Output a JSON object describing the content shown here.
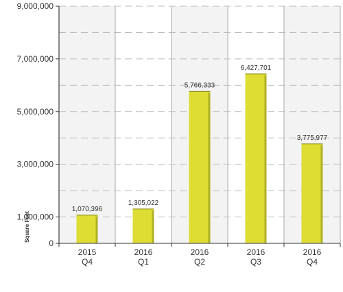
{
  "chart_data": {
    "type": "bar",
    "categories": [
      {
        "line1": "2015",
        "line2": "Q4"
      },
      {
        "line1": "2016",
        "line2": "Q1"
      },
      {
        "line1": "2016",
        "line2": "Q2"
      },
      {
        "line1": "2016",
        "line2": "Q3"
      },
      {
        "line1": "2016",
        "line2": "Q4"
      }
    ],
    "values": [
      1070396,
      1305022,
      5766333,
      6427701,
      3775977
    ],
    "value_labels": [
      "1,070,396",
      "1,305,022",
      "5,766,333",
      "6,427,701",
      "3,775,977"
    ],
    "ylabel": "Square Feet",
    "ylim": [
      0,
      9000000
    ],
    "y_ticks": [
      {
        "value": 0,
        "label": "0"
      },
      {
        "value": 1000000,
        "label": "1,000,000"
      },
      {
        "value": 3000000,
        "label": "3,000,000"
      },
      {
        "value": 5000000,
        "label": "5,000,000"
      },
      {
        "value": 7000000,
        "label": "7,000,000"
      },
      {
        "value": 9000000,
        "label": "9,000,000"
      }
    ],
    "gridlines": [
      1000000,
      2000000,
      3000000,
      4000000,
      5000000,
      6000000,
      7000000,
      8000000,
      9000000
    ],
    "grid": true,
    "legend": "none",
    "colors": {
      "bar_fill": "#dddd33",
      "bar_edge": "#8a8a1a",
      "band_shaded": "#f3f3f3",
      "band_border": "#c4c4c4",
      "gridline": "#bbbbbb",
      "axis": "#333333",
      "text": "#333333"
    }
  }
}
